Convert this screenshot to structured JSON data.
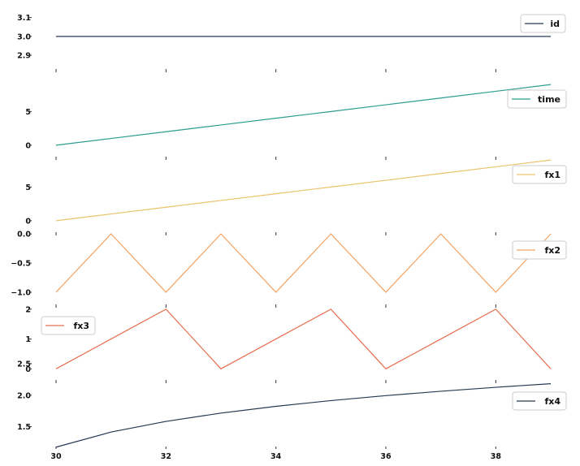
{
  "chart_data": {
    "type": "line",
    "x": [
      30,
      31,
      32,
      33,
      34,
      35,
      36,
      37,
      38,
      39
    ],
    "x_ticks": [
      30,
      32,
      34,
      36,
      38
    ],
    "grid": false,
    "panels": [
      {
        "series_name": "id",
        "color": "#243a52",
        "values": [
          3,
          3,
          3,
          3,
          3,
          3,
          3,
          3,
          3,
          3
        ],
        "ylim": [
          2.87,
          3.12
        ],
        "y_ticks": [
          "3.1",
          "3.0",
          "2.9"
        ],
        "y_tick_values": [
          3.1,
          3.0,
          2.9
        ],
        "legend_loc": "upper right"
      },
      {
        "series_name": "time",
        "color": "#2a9d8f",
        "values": [
          0,
          1,
          2,
          3,
          4,
          5,
          6,
          7,
          8,
          9
        ],
        "ylim": [
          -0.5,
          9.5
        ],
        "y_ticks": [
          "5",
          "0"
        ],
        "y_tick_values": [
          5,
          0
        ],
        "legend_loc": "upper right"
      },
      {
        "series_name": "fx1",
        "color": "#e9c46a",
        "values": [
          0,
          1,
          2,
          3,
          4,
          5,
          6,
          7,
          8,
          9
        ],
        "ylim": [
          -0.5,
          9.5
        ],
        "y_ticks": [
          "5",
          "0"
        ],
        "y_tick_values": [
          5,
          0
        ],
        "legend_loc": "right"
      },
      {
        "series_name": "fx2",
        "color": "#f4a261",
        "values": [
          -1,
          0,
          -1,
          0,
          -1,
          0,
          -1,
          0,
          -1,
          0
        ],
        "ylim": [
          -1.07,
          0.03
        ],
        "y_ticks": [
          "0.0",
          "−0.5",
          "−1.0"
        ],
        "y_tick_values": [
          0,
          -0.5,
          -1
        ],
        "legend_loc": "right"
      },
      {
        "series_name": "fx3",
        "color": "#e76f51",
        "values": [
          0,
          1,
          2,
          0,
          1,
          2,
          0,
          1,
          2,
          0
        ],
        "ylim": [
          -0.1,
          2.05
        ],
        "y_ticks": [
          "2",
          "1",
          "0"
        ],
        "y_tick_values": [
          2,
          1,
          0
        ],
        "legend_loc": "upper left"
      },
      {
        "series_name": "fx4",
        "color": "#243a52",
        "values": [
          1.176,
          1.415,
          1.584,
          1.716,
          1.823,
          1.914,
          1.993,
          2.062,
          2.125,
          2.182
        ],
        "ylim": [
          1.16,
          2.19
        ],
        "y_ticks": [
          "2.5",
          "2.0",
          "1.5"
        ],
        "y_tick_values": [
          2.5,
          2.0,
          1.5
        ],
        "legend_loc": "upper right"
      }
    ]
  }
}
